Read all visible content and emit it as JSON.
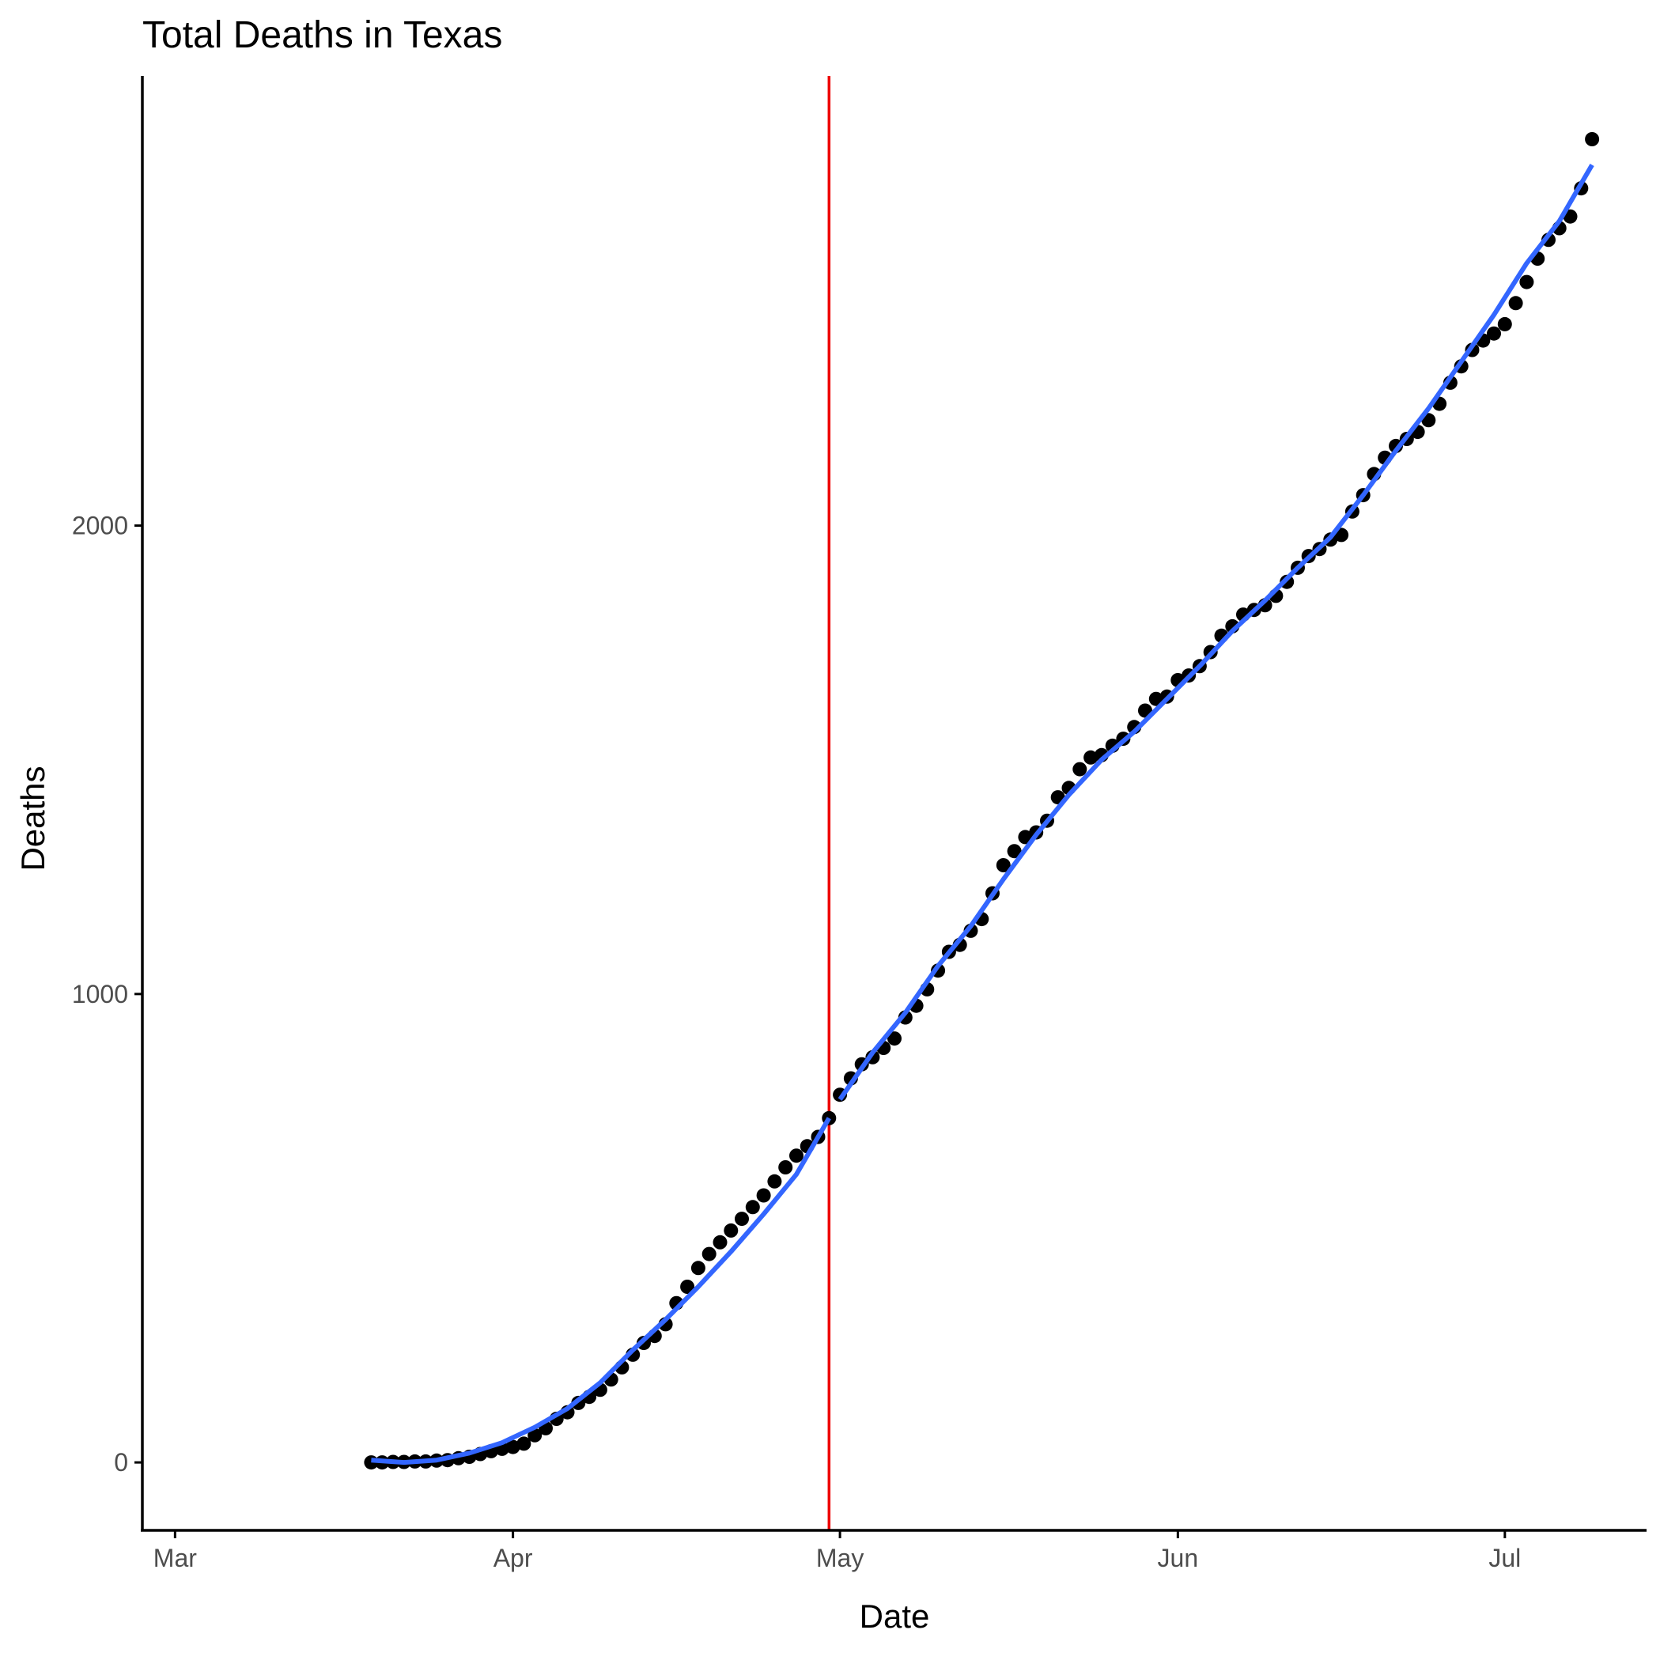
{
  "chart_data": {
    "type": "scatter",
    "title": "Total Deaths in Texas",
    "xlabel": "Date",
    "ylabel": "Deaths",
    "x_ticks": [
      {
        "date": "2020-03-01",
        "label": "Mar"
      },
      {
        "date": "2020-04-01",
        "label": "Apr"
      },
      {
        "date": "2020-05-01",
        "label": "May"
      },
      {
        "date": "2020-06-01",
        "label": "Jun"
      },
      {
        "date": "2020-07-01",
        "label": "Jul"
      }
    ],
    "y_ticks": [
      0,
      1000,
      2000
    ],
    "xlim": [
      "2020-02-27",
      "2020-07-14"
    ],
    "ylim": [
      -145,
      2960
    ],
    "grid": false,
    "legend": "none",
    "vline": {
      "date": "2020-04-30",
      "color": "#ee0000"
    },
    "colors": {
      "points": "#000000",
      "smooth": "#3366ff",
      "vline": "#ee0000",
      "axis": "#000000"
    },
    "series": [
      {
        "type": "scatter",
        "points": [
          [
            "2020-03-19",
            0
          ],
          [
            "2020-03-20",
            0
          ],
          [
            "2020-03-21",
            1
          ],
          [
            "2020-03-22",
            1
          ],
          [
            "2020-03-23",
            2
          ],
          [
            "2020-03-24",
            2
          ],
          [
            "2020-03-25",
            4
          ],
          [
            "2020-03-26",
            5
          ],
          [
            "2020-03-27",
            9
          ],
          [
            "2020-03-28",
            12
          ],
          [
            "2020-03-29",
            18
          ],
          [
            "2020-03-30",
            24
          ],
          [
            "2020-03-31",
            29
          ],
          [
            "2020-04-01",
            33
          ],
          [
            "2020-04-02",
            40
          ],
          [
            "2020-04-03",
            58
          ],
          [
            "2020-04-04",
            73
          ],
          [
            "2020-04-05",
            93
          ],
          [
            "2020-04-06",
            107
          ],
          [
            "2020-04-07",
            127
          ],
          [
            "2020-04-08",
            140
          ],
          [
            "2020-04-09",
            155
          ],
          [
            "2020-04-10",
            177
          ],
          [
            "2020-04-11",
            203
          ],
          [
            "2020-04-12",
            230
          ],
          [
            "2020-04-13",
            255
          ],
          [
            "2020-04-14",
            270
          ],
          [
            "2020-04-15",
            295
          ],
          [
            "2020-04-16",
            340
          ],
          [
            "2020-04-17",
            375
          ],
          [
            "2020-04-18",
            415
          ],
          [
            "2020-04-19",
            445
          ],
          [
            "2020-04-20",
            470
          ],
          [
            "2020-04-21",
            495
          ],
          [
            "2020-04-22",
            520
          ],
          [
            "2020-04-23",
            545
          ],
          [
            "2020-04-24",
            570
          ],
          [
            "2020-04-25",
            600
          ],
          [
            "2020-04-26",
            630
          ],
          [
            "2020-04-27",
            655
          ],
          [
            "2020-04-28",
            675
          ],
          [
            "2020-04-29",
            695
          ],
          [
            "2020-04-30",
            735
          ],
          [
            "2020-05-01",
            785
          ],
          [
            "2020-05-02",
            820
          ],
          [
            "2020-05-03",
            850
          ],
          [
            "2020-05-04",
            865
          ],
          [
            "2020-05-05",
            885
          ],
          [
            "2020-05-06",
            905
          ],
          [
            "2020-05-07",
            950
          ],
          [
            "2020-05-08",
            975
          ],
          [
            "2020-05-09",
            1010
          ],
          [
            "2020-05-10",
            1050
          ],
          [
            "2020-05-11",
            1090
          ],
          [
            "2020-05-12",
            1105
          ],
          [
            "2020-05-13",
            1135
          ],
          [
            "2020-05-14",
            1160
          ],
          [
            "2020-05-15",
            1215
          ],
          [
            "2020-05-16",
            1275
          ],
          [
            "2020-05-17",
            1305
          ],
          [
            "2020-05-18",
            1335
          ],
          [
            "2020-05-19",
            1345
          ],
          [
            "2020-05-20",
            1370
          ],
          [
            "2020-05-21",
            1420
          ],
          [
            "2020-05-22",
            1440
          ],
          [
            "2020-05-23",
            1480
          ],
          [
            "2020-05-24",
            1505
          ],
          [
            "2020-05-25",
            1510
          ],
          [
            "2020-05-26",
            1530
          ],
          [
            "2020-05-27",
            1545
          ],
          [
            "2020-05-28",
            1570
          ],
          [
            "2020-05-29",
            1605
          ],
          [
            "2020-05-30",
            1630
          ],
          [
            "2020-05-31",
            1635
          ],
          [
            "2020-06-01",
            1670
          ],
          [
            "2020-06-02",
            1680
          ],
          [
            "2020-06-03",
            1700
          ],
          [
            "2020-06-04",
            1730
          ],
          [
            "2020-06-05",
            1765
          ],
          [
            "2020-06-06",
            1785
          ],
          [
            "2020-06-07",
            1810
          ],
          [
            "2020-06-08",
            1820
          ],
          [
            "2020-06-09",
            1830
          ],
          [
            "2020-06-10",
            1850
          ],
          [
            "2020-06-11",
            1880
          ],
          [
            "2020-06-12",
            1910
          ],
          [
            "2020-06-13",
            1935
          ],
          [
            "2020-06-14",
            1950
          ],
          [
            "2020-06-15",
            1970
          ],
          [
            "2020-06-16",
            1980
          ],
          [
            "2020-06-17",
            2030
          ],
          [
            "2020-06-18",
            2065
          ],
          [
            "2020-06-19",
            2110
          ],
          [
            "2020-06-20",
            2145
          ],
          [
            "2020-06-21",
            2170
          ],
          [
            "2020-06-22",
            2185
          ],
          [
            "2020-06-23",
            2200
          ],
          [
            "2020-06-24",
            2225
          ],
          [
            "2020-06-25",
            2260
          ],
          [
            "2020-06-26",
            2305
          ],
          [
            "2020-06-27",
            2340
          ],
          [
            "2020-06-28",
            2375
          ],
          [
            "2020-06-29",
            2395
          ],
          [
            "2020-06-30",
            2410
          ],
          [
            "2020-07-01",
            2430
          ],
          [
            "2020-07-02",
            2475
          ],
          [
            "2020-07-03",
            2520
          ],
          [
            "2020-07-04",
            2570
          ],
          [
            "2020-07-05",
            2610
          ],
          [
            "2020-07-06",
            2635
          ],
          [
            "2020-07-07",
            2660
          ],
          [
            "2020-07-08",
            2720
          ],
          [
            "2020-07-09",
            2825
          ]
        ]
      },
      {
        "type": "line",
        "segment": "before",
        "points": [
          [
            "2020-03-19",
            5
          ],
          [
            "2020-03-22",
            0
          ],
          [
            "2020-03-25",
            5
          ],
          [
            "2020-03-28",
            20
          ],
          [
            "2020-03-31",
            42
          ],
          [
            "2020-04-03",
            75
          ],
          [
            "2020-04-06",
            115
          ],
          [
            "2020-04-09",
            170
          ],
          [
            "2020-04-12",
            240
          ],
          [
            "2020-04-15",
            305
          ],
          [
            "2020-04-18",
            375
          ],
          [
            "2020-04-21",
            450
          ],
          [
            "2020-04-24",
            530
          ],
          [
            "2020-04-27",
            615
          ],
          [
            "2020-04-30",
            735
          ]
        ]
      },
      {
        "type": "line",
        "segment": "after",
        "points": [
          [
            "2020-05-01",
            775
          ],
          [
            "2020-05-04",
            875
          ],
          [
            "2020-05-07",
            960
          ],
          [
            "2020-05-10",
            1060
          ],
          [
            "2020-05-13",
            1145
          ],
          [
            "2020-05-16",
            1245
          ],
          [
            "2020-05-19",
            1340
          ],
          [
            "2020-05-22",
            1425
          ],
          [
            "2020-05-25",
            1500
          ],
          [
            "2020-05-28",
            1560
          ],
          [
            "2020-05-31",
            1630
          ],
          [
            "2020-06-03",
            1700
          ],
          [
            "2020-06-06",
            1775
          ],
          [
            "2020-06-09",
            1840
          ],
          [
            "2020-06-12",
            1910
          ],
          [
            "2020-06-15",
            1975
          ],
          [
            "2020-06-18",
            2065
          ],
          [
            "2020-06-21",
            2160
          ],
          [
            "2020-06-24",
            2250
          ],
          [
            "2020-06-27",
            2350
          ],
          [
            "2020-06-30",
            2450
          ],
          [
            "2020-07-03",
            2560
          ],
          [
            "2020-07-06",
            2650
          ],
          [
            "2020-07-09",
            2770
          ]
        ]
      }
    ]
  }
}
